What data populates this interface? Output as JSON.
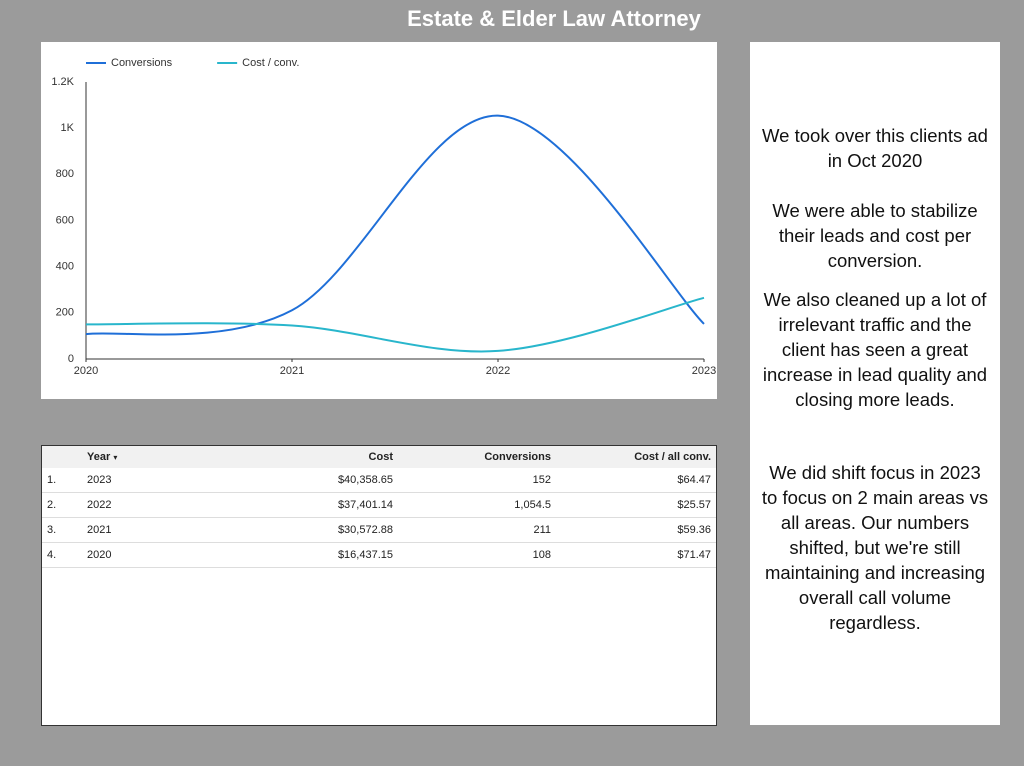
{
  "title": "Estate & Elder Law Attorney",
  "chart_data": {
    "type": "line",
    "x": [
      2020,
      2021,
      2022,
      2023
    ],
    "xlim": [
      2020,
      2023
    ],
    "xticks": [
      2020,
      2021,
      2022,
      2023
    ],
    "ylim": [
      0,
      1200
    ],
    "yticks": [
      0,
      200,
      400,
      600,
      800,
      {
        "value": 1000,
        "label": "1K"
      },
      {
        "value": 1200,
        "label": "1.2K"
      }
    ],
    "series": [
      {
        "name": "Conversions",
        "color": "#1f6fd8",
        "values": [
          108,
          211,
          1054.5,
          152
        ]
      },
      {
        "name": "Cost / conv.",
        "color": "#29b6cc",
        "values": [
          150,
          145,
          35,
          265
        ]
      }
    ]
  },
  "table": {
    "columns": [
      "Year",
      "Cost",
      "Conversions",
      "Cost / all conv."
    ],
    "rows": [
      [
        "1.",
        "2023",
        "$40,358.65",
        "152",
        "$64.47"
      ],
      [
        "2.",
        "2022",
        "$37,401.14",
        "1,054.5",
        "$25.57"
      ],
      [
        "3.",
        "2021",
        "$30,572.88",
        "211",
        "$59.36"
      ],
      [
        "4.",
        "2020",
        "$16,437.15",
        "108",
        "$71.47"
      ]
    ]
  },
  "notes": [
    "We took over this clients ad in Oct 2020",
    "We were able to stabilize their leads and cost per conversion.",
    "We also cleaned up a lot of irrelevant traffic and the client has seen a great increase in lead quality and closing more leads.",
    "We did shift focus in 2023 to focus on 2 main areas vs all areas. Our numbers shifted, but we're still maintaining and increasing overall call volume regardless."
  ]
}
